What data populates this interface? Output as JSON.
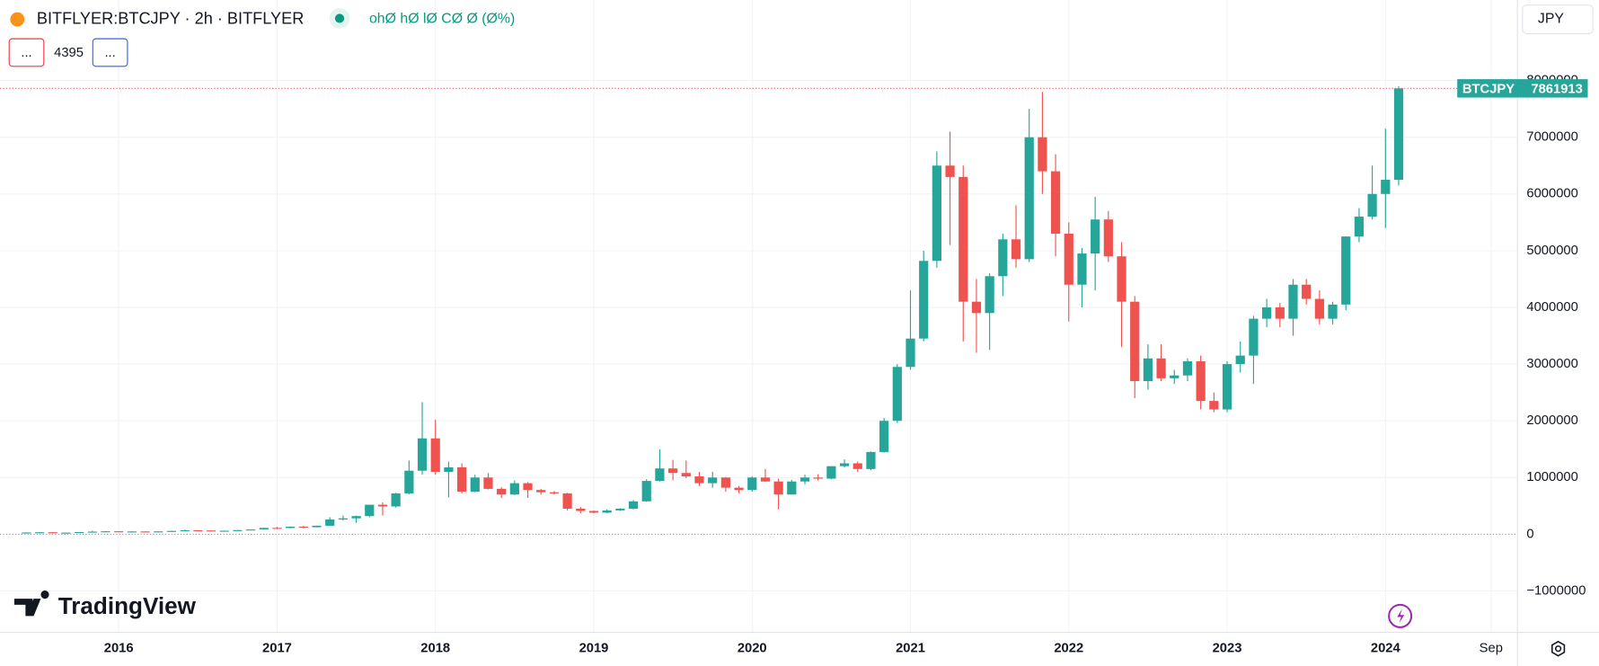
{
  "header": {
    "symbol": "BITFLYER:BTCJPY · 2h · BITFLYER",
    "ohlc": "ohØ hØ lØ CØ Ø (Ø%)",
    "buttons": [
      "...",
      "..."
    ],
    "count": "4395",
    "currency": "JPY",
    "logo": "TradingView"
  },
  "chart_data": {
    "type": "candlestick",
    "series_name": "BTCJPY",
    "up_color": "#26a69a",
    "down_color": "#ef5350",
    "grid": true,
    "xlim": [
      "2015-04",
      "2024-11"
    ],
    "xticks": [
      {
        "value": "2016-01",
        "label": "2016"
      },
      {
        "value": "2017-01",
        "label": "2017"
      },
      {
        "value": "2018-01",
        "label": "2018"
      },
      {
        "value": "2019-01",
        "label": "2019"
      },
      {
        "value": "2020-01",
        "label": "2020"
      },
      {
        "value": "2021-01",
        "label": "2021"
      },
      {
        "value": "2022-01",
        "label": "2022"
      },
      {
        "value": "2023-01",
        "label": "2023"
      },
      {
        "value": "2024-01",
        "label": "2024"
      },
      {
        "value": "2024-09",
        "label": "Sep"
      }
    ],
    "ylim": [
      -1730000,
      9420000
    ],
    "yticks": [
      {
        "value": -1000000,
        "label": "−1000000"
      },
      0,
      1000000,
      2000000,
      3000000,
      4000000,
      5000000,
      6000000,
      7000000,
      8000000
    ],
    "x": [
      "2015-06",
      "2015-07",
      "2015-08",
      "2015-09",
      "2015-10",
      "2015-11",
      "2015-12",
      "2016-01",
      "2016-02",
      "2016-03",
      "2016-04",
      "2016-05",
      "2016-06",
      "2016-07",
      "2016-08",
      "2016-09",
      "2016-10",
      "2016-11",
      "2016-12",
      "2017-01",
      "2017-02",
      "2017-03",
      "2017-04",
      "2017-05",
      "2017-06",
      "2017-07",
      "2017-08",
      "2017-09",
      "2017-10",
      "2017-11",
      "2017-12",
      "2018-01",
      "2018-02",
      "2018-03",
      "2018-04",
      "2018-05",
      "2018-06",
      "2018-07",
      "2018-08",
      "2018-09",
      "2018-10",
      "2018-11",
      "2018-12",
      "2019-01",
      "2019-02",
      "2019-03",
      "2019-04",
      "2019-05",
      "2019-06",
      "2019-07",
      "2019-08",
      "2019-09",
      "2019-10",
      "2019-11",
      "2019-12",
      "2020-01",
      "2020-02",
      "2020-03",
      "2020-04",
      "2020-05",
      "2020-06",
      "2020-07",
      "2020-08",
      "2020-09",
      "2020-10",
      "2020-11",
      "2020-12",
      "2021-01",
      "2021-02",
      "2021-03",
      "2021-04",
      "2021-05",
      "2021-06",
      "2021-07",
      "2021-08",
      "2021-09",
      "2021-10",
      "2021-11",
      "2021-12",
      "2022-01",
      "2022-02",
      "2022-03",
      "2022-04",
      "2022-05",
      "2022-06",
      "2022-07",
      "2022-08",
      "2022-09",
      "2022-10",
      "2022-11",
      "2022-12",
      "2023-01",
      "2023-02",
      "2023-03",
      "2023-04",
      "2023-05",
      "2023-06",
      "2023-07",
      "2023-08",
      "2023-09",
      "2023-10",
      "2023-11",
      "2023-12",
      "2024-01",
      "2024-02"
    ],
    "open": [
      28000,
      31000,
      35000,
      28000,
      29000,
      38000,
      46000,
      52000,
      44000,
      49000,
      47000,
      50000,
      58000,
      70000,
      66000,
      58000,
      62000,
      73000,
      84000,
      112000,
      110000,
      134000,
      124000,
      150000,
      260000,
      280000,
      320000,
      520000,
      490000,
      720000,
      1120000,
      1690000,
      1100000,
      1180000,
      750000,
      1000000,
      800000,
      700000,
      900000,
      780000,
      740000,
      720000,
      450000,
      410000,
      380000,
      420000,
      450000,
      580000,
      940000,
      1160000,
      1080000,
      1020000,
      900000,
      1000000,
      820000,
      780000,
      1000000,
      930000,
      700000,
      930000,
      1000000,
      980000,
      1200000,
      1250000,
      1150000,
      1450000,
      2000000,
      2950000,
      3450000,
      4820000,
      6500000,
      6300000,
      4100000,
      3900000,
      4550000,
      5200000,
      4850000,
      7000000,
      6400000,
      5300000,
      4400000,
      4950000,
      5550000,
      4900000,
      4100000,
      2700000,
      3100000,
      2750000,
      2800000,
      3050000,
      2350000,
      2200000,
      3000000,
      3150000,
      3800000,
      4000000,
      3800000,
      4400000,
      4150000,
      3800000,
      4050000,
      5250000,
      5600000,
      6000000,
      6250000
    ],
    "high": [
      32000,
      36000,
      36000,
      30000,
      40000,
      62000,
      55000,
      55000,
      51000,
      50000,
      51000,
      62000,
      80000,
      72000,
      68000,
      63000,
      76000,
      86000,
      114000,
      130000,
      135000,
      145000,
      152000,
      300000,
      330000,
      330000,
      520000,
      560000,
      730000,
      1300000,
      2330000,
      2020000,
      1280000,
      1250000,
      1050000,
      1080000,
      830000,
      950000,
      920000,
      800000,
      760000,
      730000,
      480000,
      420000,
      440000,
      460000,
      600000,
      970000,
      1500000,
      1310000,
      1300000,
      1100000,
      1100000,
      1010000,
      850000,
      1020000,
      1150000,
      980000,
      960000,
      1050000,
      1060000,
      1200000,
      1320000,
      1280000,
      1460000,
      2050000,
      3000000,
      4300000,
      5000000,
      6750000,
      7100000,
      6500000,
      4500000,
      4600000,
      5300000,
      5800000,
      7500000,
      7800000,
      6700000,
      5500000,
      5050000,
      5950000,
      5700000,
      5150000,
      4200000,
      3350000,
      3350000,
      2900000,
      3100000,
      3150000,
      2500000,
      3050000,
      3400000,
      3850000,
      4150000,
      4080000,
      4500000,
      4500000,
      4300000,
      4100000,
      5250000,
      5750000,
      6500000,
      7150000,
      7900000
    ],
    "low": [
      26000,
      30000,
      26000,
      27000,
      28000,
      36000,
      44000,
      43000,
      42000,
      46000,
      46000,
      48000,
      56000,
      60000,
      55000,
      57000,
      61000,
      72000,
      82000,
      90000,
      105000,
      105000,
      122000,
      148000,
      240000,
      200000,
      300000,
      330000,
      470000,
      700000,
      1050000,
      1050000,
      650000,
      720000,
      740000,
      790000,
      640000,
      690000,
      640000,
      700000,
      700000,
      420000,
      370000,
      370000,
      370000,
      410000,
      440000,
      570000,
      930000,
      950000,
      990000,
      850000,
      820000,
      750000,
      720000,
      750000,
      920000,
      440000,
      700000,
      880000,
      950000,
      970000,
      1180000,
      1100000,
      1130000,
      1440000,
      1960000,
      2900000,
      3400000,
      4700000,
      5100000,
      3400000,
      3200000,
      3250000,
      4200000,
      4700000,
      4800000,
      6000000,
      4900000,
      3750000,
      4000000,
      4300000,
      4800000,
      3300000,
      2400000,
      2550000,
      2700000,
      2650000,
      2700000,
      2200000,
      2150000,
      2150000,
      2850000,
      2650000,
      3650000,
      3650000,
      3500000,
      4050000,
      3700000,
      3700000,
      3950000,
      5150000,
      5550000,
      5400000,
      6150000
    ],
    "close": [
      31000,
      35000,
      28000,
      29000,
      38000,
      46000,
      52000,
      44000,
      49000,
      47000,
      50000,
      58000,
      70000,
      66000,
      58000,
      62000,
      73000,
      84000,
      112000,
      110000,
      134000,
      124000,
      150000,
      260000,
      280000,
      320000,
      520000,
      490000,
      720000,
      1120000,
      1690000,
      1100000,
      1180000,
      750000,
      1000000,
      800000,
      700000,
      900000,
      780000,
      740000,
      720000,
      450000,
      410000,
      380000,
      420000,
      450000,
      580000,
      940000,
      1160000,
      1080000,
      1020000,
      900000,
      1000000,
      820000,
      780000,
      1000000,
      930000,
      700000,
      930000,
      1000000,
      980000,
      1200000,
      1250000,
      1150000,
      1450000,
      2000000,
      2950000,
      3450000,
      4820000,
      6500000,
      6300000,
      4100000,
      3900000,
      4550000,
      5200000,
      4850000,
      7000000,
      6400000,
      5300000,
      4400000,
      4950000,
      5550000,
      4900000,
      4100000,
      2700000,
      3100000,
      2750000,
      2800000,
      3050000,
      2350000,
      2200000,
      3000000,
      3150000,
      3800000,
      4000000,
      3800000,
      4400000,
      4150000,
      3800000,
      4050000,
      5250000,
      5600000,
      6000000,
      6250000,
      7861913
    ]
  }
}
